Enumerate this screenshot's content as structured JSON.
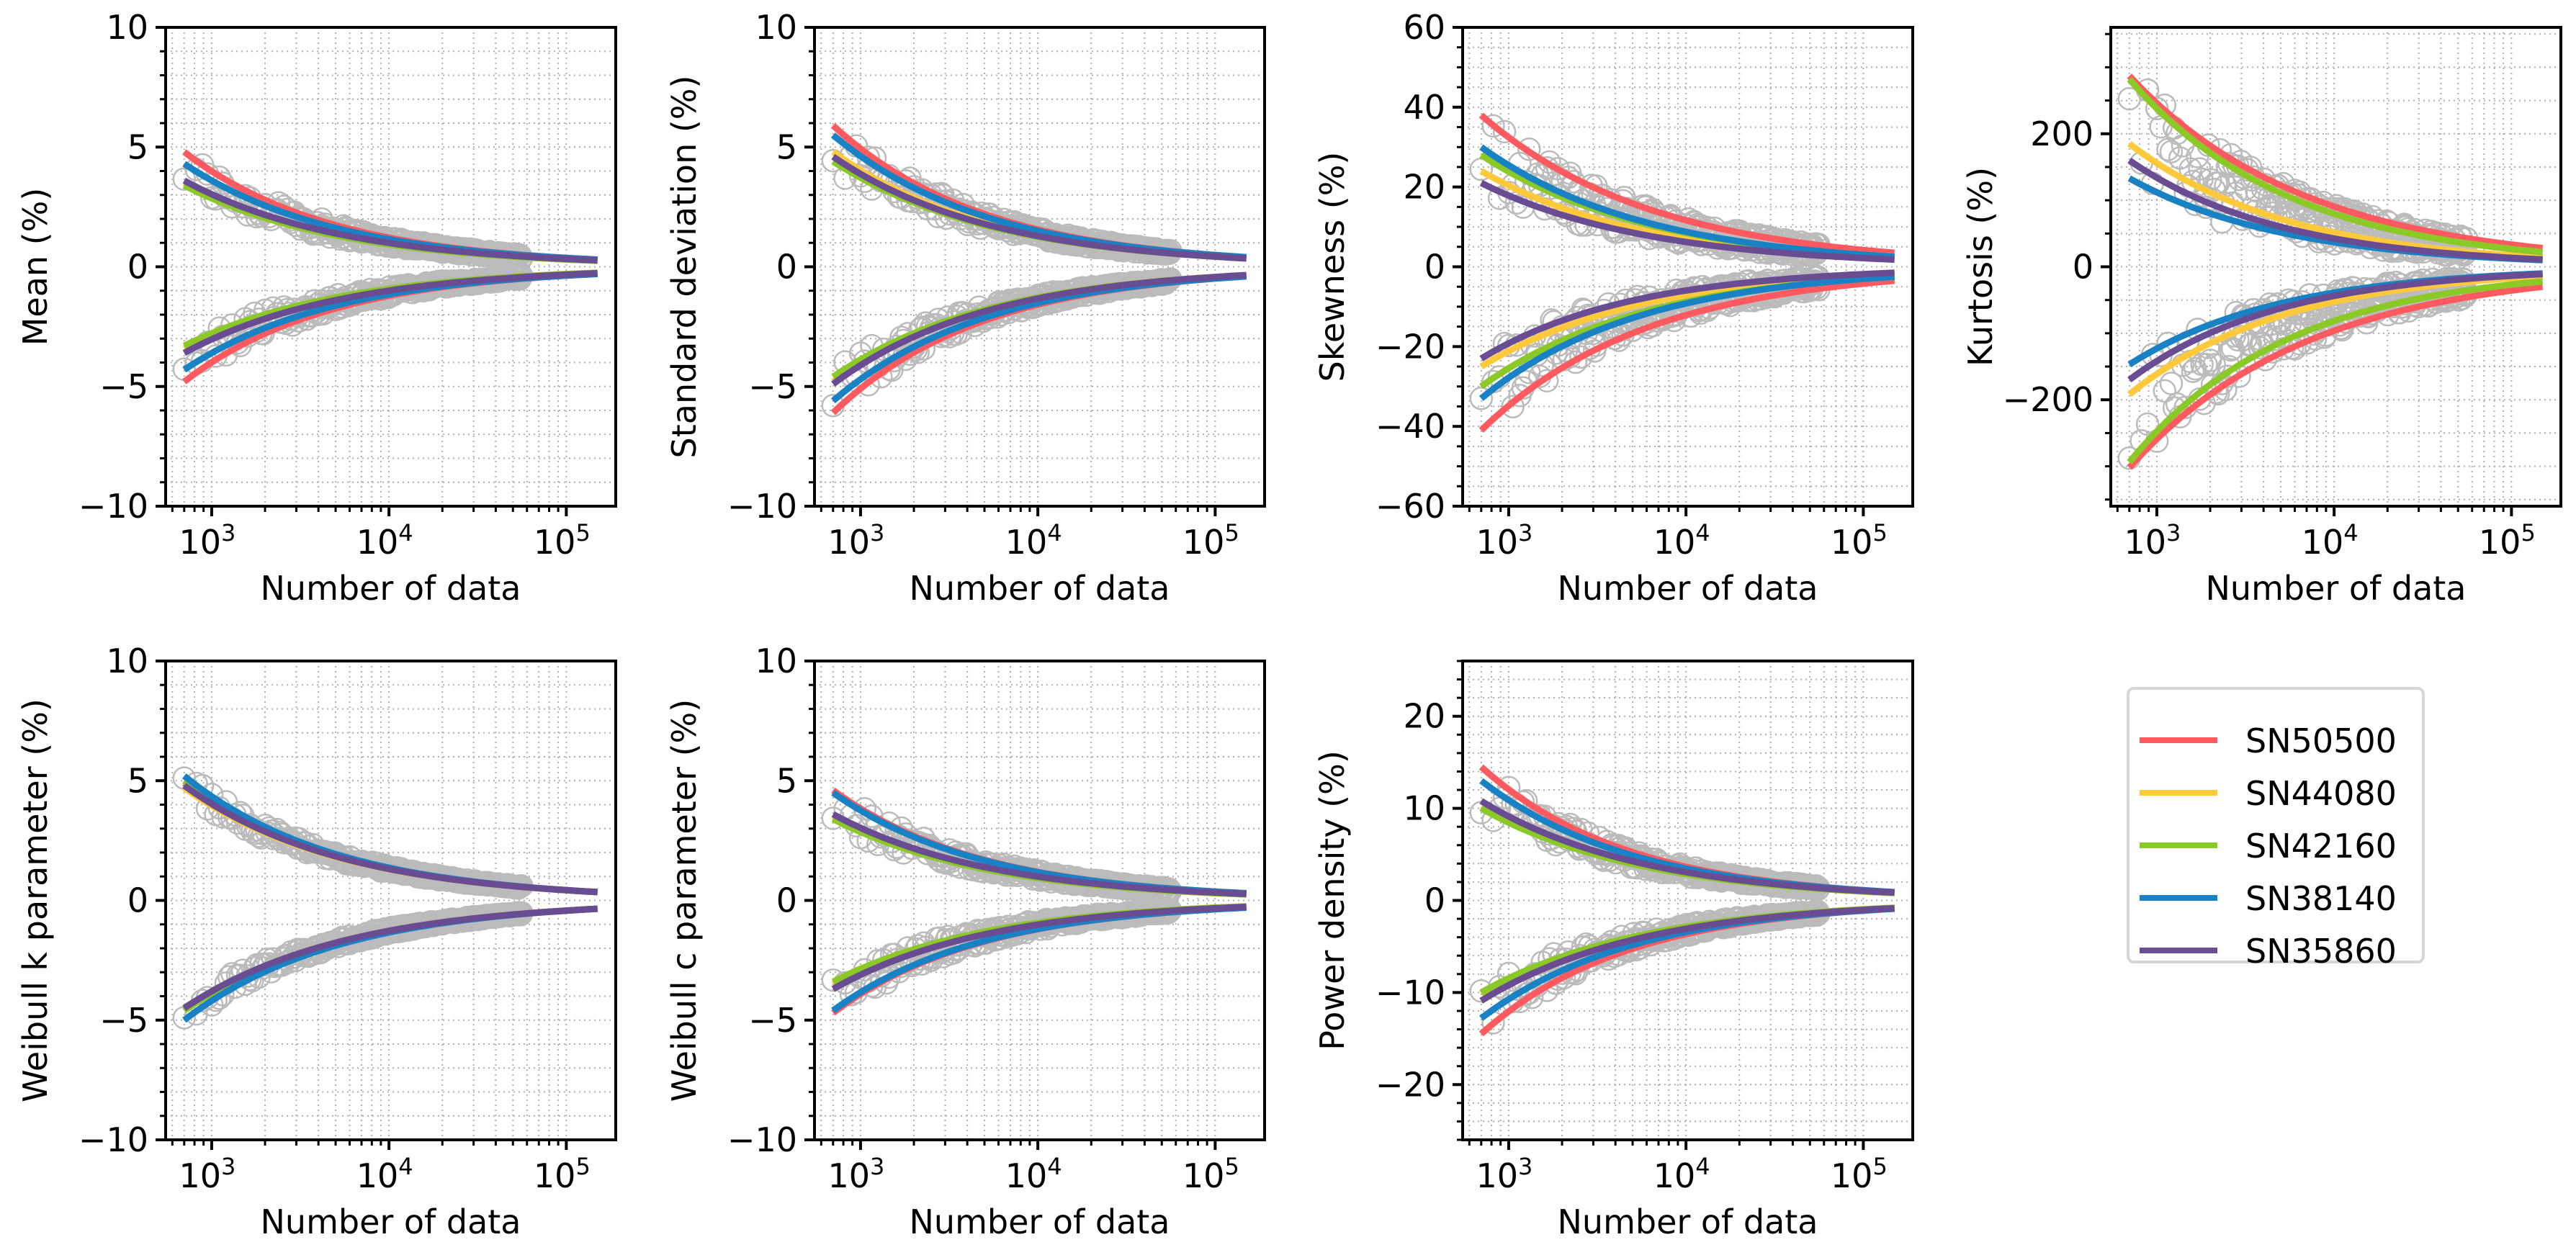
{
  "figure": {
    "x_label": "Number of data",
    "x_scale": "log",
    "x_range": [
      550,
      190000
    ],
    "x_major_ticks": [
      1000,
      10000,
      100000
    ],
    "x_major_tick_labels": [
      "10^3",
      "10^4",
      "10^5"
    ],
    "grid": "major and minor, dotted, light gray"
  },
  "legend": {
    "placement": "bottom-right (empty 8th subplot slot)",
    "entries": [
      {
        "label": "SN50500",
        "color": "#ff5a5f"
      },
      {
        "label": "SN44080",
        "color": "#ffc93c"
      },
      {
        "label": "SN42160",
        "color": "#8ac926"
      },
      {
        "label": "SN38140",
        "color": "#1982c4"
      },
      {
        "label": "SN35860",
        "color": "#6a4c93"
      }
    ]
  },
  "chart_data": [
    {
      "type": "line",
      "panel": "Mean",
      "ylabel": "Mean (%)",
      "xlabel": "Number of data",
      "ylim": [
        -10,
        10
      ],
      "y_ticks": [
        -10,
        -5,
        0,
        5,
        10
      ],
      "y_tick_labels": [
        "−10",
        "−5",
        "0",
        "5",
        "10"
      ],
      "scatter": {
        "x_range": [
          700,
          56000
        ],
        "color": "#bbbbbb",
        "marker": "open-circle"
      },
      "fit_x_range": [
        700,
        150000
      ],
      "series": [
        {
          "name": "SN50500",
          "upper_at_700": 4.8,
          "lower_at_700": -4.8,
          "upper_at_150000": 0.3,
          "lower_at_150000": -0.3
        },
        {
          "name": "SN44080",
          "upper_at_700": 3.5,
          "lower_at_700": -3.4,
          "upper_at_150000": 0.25,
          "lower_at_150000": -0.25
        },
        {
          "name": "SN42160",
          "upper_at_700": 3.4,
          "lower_at_700": -3.3,
          "upper_at_150000": 0.25,
          "lower_at_150000": -0.25
        },
        {
          "name": "SN38140",
          "upper_at_700": 4.3,
          "lower_at_700": -4.3,
          "upper_at_150000": 0.3,
          "lower_at_150000": -0.3
        },
        {
          "name": "SN35860",
          "upper_at_700": 3.6,
          "lower_at_700": -3.6,
          "upper_at_150000": 0.27,
          "lower_at_150000": -0.27
        }
      ]
    },
    {
      "type": "line",
      "panel": "Standard deviation",
      "ylabel": "Standard deviation (%)",
      "xlabel": "Number of data",
      "ylim": [
        -10,
        10
      ],
      "y_ticks": [
        -10,
        -5,
        0,
        5,
        10
      ],
      "y_tick_labels": [
        "−10",
        "−5",
        "0",
        "5",
        "10"
      ],
      "scatter": {
        "x_range": [
          700,
          56000
        ],
        "color": "#bbbbbb",
        "marker": "open-circle"
      },
      "fit_x_range": [
        700,
        150000
      ],
      "series": [
        {
          "name": "SN50500",
          "upper_at_700": 5.9,
          "lower_at_700": -6.1,
          "upper_at_150000": 0.4,
          "lower_at_150000": -0.4
        },
        {
          "name": "SN44080",
          "upper_at_700": 4.8,
          "lower_at_700": -4.8,
          "upper_at_150000": 0.35,
          "lower_at_150000": -0.35
        },
        {
          "name": "SN42160",
          "upper_at_700": 4.4,
          "lower_at_700": -4.6,
          "upper_at_150000": 0.35,
          "lower_at_150000": -0.35
        },
        {
          "name": "SN38140",
          "upper_at_700": 5.5,
          "lower_at_700": -5.6,
          "upper_at_150000": 0.4,
          "lower_at_150000": -0.4
        },
        {
          "name": "SN35860",
          "upper_at_700": 4.6,
          "lower_at_700": -4.9,
          "upper_at_150000": 0.35,
          "lower_at_150000": -0.35
        }
      ]
    },
    {
      "type": "line",
      "panel": "Skewness",
      "ylabel": "Skewness (%)",
      "xlabel": "Number of data",
      "ylim": [
        -60,
        60
      ],
      "y_ticks": [
        -60,
        -40,
        -20,
        0,
        20,
        40,
        60
      ],
      "y_tick_labels": [
        "−60",
        "−40",
        "−20",
        "0",
        "20",
        "40",
        "60"
      ],
      "scatter": {
        "x_range": [
          700,
          56000
        ],
        "color": "#bbbbbb",
        "marker": "open-circle"
      },
      "fit_x_range": [
        700,
        150000
      ],
      "series": [
        {
          "name": "SN50500",
          "upper_at_700": 38,
          "lower_at_700": -41,
          "upper_at_150000": 3.5,
          "lower_at_150000": -3.5
        },
        {
          "name": "SN44080",
          "upper_at_700": 24,
          "lower_at_700": -25,
          "upper_at_150000": 2.0,
          "lower_at_150000": -2.0
        },
        {
          "name": "SN42160",
          "upper_at_700": 28,
          "lower_at_700": -30,
          "upper_at_150000": 2.5,
          "lower_at_150000": -2.5
        },
        {
          "name": "SN38140",
          "upper_at_700": 30,
          "lower_at_700": -33,
          "upper_at_150000": 2.5,
          "lower_at_150000": -2.5
        },
        {
          "name": "SN35860",
          "upper_at_700": 21,
          "lower_at_700": -23,
          "upper_at_150000": 1.8,
          "lower_at_150000": -1.5
        }
      ]
    },
    {
      "type": "line",
      "panel": "Kurtosis",
      "ylabel": "Kurtosis (%)",
      "xlabel": "Number of data",
      "ylim": [
        -360,
        360
      ],
      "y_ticks": [
        -200,
        0,
        200
      ],
      "y_tick_labels": [
        "−200",
        "0",
        "200"
      ],
      "scatter": {
        "x_range": [
          700,
          56000
        ],
        "color": "#bbbbbb",
        "marker": "open-circle"
      },
      "fit_x_range": [
        700,
        150000
      ],
      "series": [
        {
          "name": "SN50500",
          "upper_at_700": 287,
          "lower_at_700": -302,
          "upper_at_150000": 28,
          "lower_at_150000": -30
        },
        {
          "name": "SN44080",
          "upper_at_700": 185,
          "lower_at_700": -192,
          "upper_at_150000": 14,
          "lower_at_150000": -14
        },
        {
          "name": "SN42160",
          "upper_at_700": 282,
          "lower_at_700": -294,
          "upper_at_150000": 22,
          "lower_at_150000": -22
        },
        {
          "name": "SN38140",
          "upper_at_700": 133,
          "lower_at_700": -147,
          "upper_at_150000": 10,
          "lower_at_150000": -10
        },
        {
          "name": "SN35860",
          "upper_at_700": 160,
          "lower_at_700": -170,
          "upper_at_150000": 11,
          "lower_at_150000": -11
        }
      ]
    },
    {
      "type": "line",
      "panel": "Weibull k parameter",
      "ylabel": "Weibull k parameter (%)",
      "xlabel": "Number of data",
      "ylim": [
        -10,
        10
      ],
      "y_ticks": [
        -10,
        -5,
        0,
        5,
        10
      ],
      "y_tick_labels": [
        "−10",
        "−5",
        "0",
        "5",
        "10"
      ],
      "scatter": {
        "x_range": [
          700,
          56000
        ],
        "color": "#bbbbbb",
        "marker": "open-circle"
      },
      "fit_x_range": [
        700,
        150000
      ],
      "series": [
        {
          "name": "SN50500",
          "upper_at_700": 4.9,
          "lower_at_700": -4.6,
          "upper_at_150000": 0.35,
          "lower_at_150000": -0.35
        },
        {
          "name": "SN44080",
          "upper_at_700": 4.7,
          "lower_at_700": -4.5,
          "upper_at_150000": 0.35,
          "lower_at_150000": -0.35
        },
        {
          "name": "SN42160",
          "upper_at_700": 5.0,
          "lower_at_700": -4.6,
          "upper_at_150000": 0.35,
          "lower_at_150000": -0.35
        },
        {
          "name": "SN38140",
          "upper_at_700": 5.2,
          "lower_at_700": -5.0,
          "upper_at_150000": 0.35,
          "lower_at_150000": -0.35
        },
        {
          "name": "SN35860",
          "upper_at_700": 4.8,
          "lower_at_700": -4.5,
          "upper_at_150000": 0.35,
          "lower_at_150000": -0.35
        }
      ]
    },
    {
      "type": "line",
      "panel": "Weibull c parameter",
      "ylabel": "Weibull c parameter (%)",
      "xlabel": "Number of data",
      "ylim": [
        -10,
        10
      ],
      "y_ticks": [
        -10,
        -5,
        0,
        5,
        10
      ],
      "y_tick_labels": [
        "−10",
        "−5",
        "0",
        "5",
        "10"
      ],
      "scatter": {
        "x_range": [
          700,
          56000
        ],
        "color": "#bbbbbb",
        "marker": "open-circle"
      },
      "fit_x_range": [
        700,
        150000
      ],
      "series": [
        {
          "name": "SN50500",
          "upper_at_700": 4.6,
          "lower_at_700": -4.7,
          "upper_at_150000": 0.3,
          "lower_at_150000": -0.3
        },
        {
          "name": "SN44080",
          "upper_at_700": 3.5,
          "lower_at_700": -3.5,
          "upper_at_150000": 0.25,
          "lower_at_150000": -0.25
        },
        {
          "name": "SN42160",
          "upper_at_700": 3.4,
          "lower_at_700": -3.4,
          "upper_at_150000": 0.25,
          "lower_at_150000": -0.25
        },
        {
          "name": "SN38140",
          "upper_at_700": 4.5,
          "lower_at_700": -4.6,
          "upper_at_150000": 0.3,
          "lower_at_150000": -0.3
        },
        {
          "name": "SN35860",
          "upper_at_700": 3.6,
          "lower_at_700": -3.7,
          "upper_at_150000": 0.27,
          "lower_at_150000": -0.27
        }
      ]
    },
    {
      "type": "line",
      "panel": "Power density",
      "ylabel": "Power density (%)",
      "xlabel": "Number of data",
      "ylim": [
        -26,
        26
      ],
      "y_ticks": [
        -20,
        -10,
        0,
        10,
        20
      ],
      "y_tick_labels": [
        "−20",
        "−10",
        "0",
        "10",
        "20"
      ],
      "scatter": {
        "x_range": [
          700,
          56000
        ],
        "color": "#bbbbbb",
        "marker": "open-circle"
      },
      "fit_x_range": [
        700,
        150000
      ],
      "series": [
        {
          "name": "SN50500",
          "upper_at_700": 14.5,
          "lower_at_700": -14.5,
          "upper_at_150000": 0.9,
          "lower_at_150000": -0.9
        },
        {
          "name": "SN44080",
          "upper_at_700": 10.1,
          "lower_at_700": -10.1,
          "upper_at_150000": 0.8,
          "lower_at_150000": -0.8
        },
        {
          "name": "SN42160",
          "upper_at_700": 10.0,
          "lower_at_700": -10.0,
          "upper_at_150000": 0.8,
          "lower_at_150000": -0.8
        },
        {
          "name": "SN38140",
          "upper_at_700": 13.0,
          "lower_at_700": -12.8,
          "upper_at_150000": 0.9,
          "lower_at_150000": -0.9
        },
        {
          "name": "SN35860",
          "upper_at_700": 10.8,
          "lower_at_700": -10.9,
          "upper_at_150000": 0.85,
          "lower_at_150000": -0.85
        }
      ]
    }
  ]
}
